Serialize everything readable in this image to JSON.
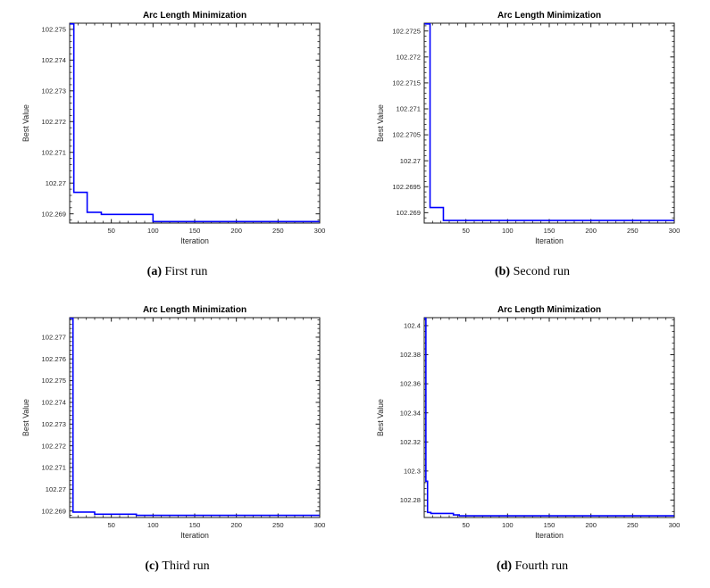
{
  "page": {
    "background": "#ffffff"
  },
  "chart_data": [
    {
      "type": "line",
      "title": "Arc Length Minimization",
      "xlabel": "Iteration",
      "ylabel": "Best Value",
      "caption": {
        "label": "(a)",
        "text": "First run"
      },
      "xlim": [
        0,
        300
      ],
      "ylim": [
        102.2687,
        102.2752
      ],
      "xticks": [
        50,
        100,
        150,
        200,
        250,
        300
      ],
      "xtick_minor": 10,
      "yticks": [
        102.269,
        102.27,
        102.271,
        102.272,
        102.273,
        102.274,
        102.275
      ],
      "ytick_labels": [
        "102.269",
        "102.27",
        "102.271",
        "102.272",
        "102.273",
        "102.274",
        "102.275"
      ],
      "ytick_minor": 0.0002,
      "grid": false,
      "legend": null,
      "line_color": "#0000ff",
      "series": [
        {
          "name": "best value",
          "points": [
            [
              0,
              102.276
            ],
            [
              5,
              102.276
            ],
            [
              5,
              102.2697
            ],
            [
              21,
              102.2697
            ],
            [
              21,
              102.26905
            ],
            [
              38,
              102.26905
            ],
            [
              38,
              102.26898
            ],
            [
              100,
              102.26898
            ],
            [
              100,
              102.26875
            ],
            [
              300,
              102.26875
            ]
          ]
        }
      ]
    },
    {
      "type": "line",
      "title": "Arc Length Minimization",
      "xlabel": "Iteration",
      "ylabel": "Best Value",
      "caption": {
        "label": "(b)",
        "text": "Second run"
      },
      "xlim": [
        0,
        300
      ],
      "ylim": [
        102.2688,
        102.27265
      ],
      "xticks": [
        50,
        100,
        150,
        200,
        250,
        300
      ],
      "xtick_minor": 10,
      "yticks": [
        102.269,
        102.2695,
        102.27,
        102.2705,
        102.271,
        102.2715,
        102.272,
        102.2725
      ],
      "ytick_labels": [
        "102.269",
        "102.2695",
        "102.27",
        "102.2705",
        "102.271",
        "102.2715",
        "102.272",
        "102.2725"
      ],
      "ytick_minor": 0.0001,
      "grid": false,
      "legend": null,
      "line_color": "#0000ff",
      "series": [
        {
          "name": "best value",
          "points": [
            [
              0,
              102.2735
            ],
            [
              7,
              102.2735
            ],
            [
              7,
              102.2691
            ],
            [
              23,
              102.2691
            ],
            [
              23,
              102.26885
            ],
            [
              300,
              102.26885
            ]
          ]
        }
      ]
    },
    {
      "type": "line",
      "title": "Arc Length Minimization",
      "xlabel": "Iteration",
      "ylabel": "Best Value",
      "caption": {
        "label": "(c)",
        "text": "Third run"
      },
      "xlim": [
        0,
        300
      ],
      "ylim": [
        102.2687,
        102.2779
      ],
      "xticks": [
        50,
        100,
        150,
        200,
        250,
        300
      ],
      "xtick_minor": 10,
      "yticks": [
        102.269,
        102.27,
        102.271,
        102.272,
        102.273,
        102.274,
        102.275,
        102.276,
        102.277
      ],
      "ytick_labels": [
        "102.269",
        "102.27",
        "102.271",
        "102.272",
        "102.273",
        "102.274",
        "102.275",
        "102.276",
        "102.277"
      ],
      "ytick_minor": 0.0002,
      "grid": false,
      "legend": null,
      "line_color": "#0000ff",
      "series": [
        {
          "name": "best value",
          "points": [
            [
              0,
              102.279
            ],
            [
              4,
              102.279
            ],
            [
              4,
              102.26895
            ],
            [
              30,
              102.26895
            ],
            [
              30,
              102.26885
            ],
            [
              80,
              102.26885
            ],
            [
              80,
              102.2688
            ],
            [
              300,
              102.2688
            ]
          ]
        }
      ]
    },
    {
      "type": "line",
      "title": "Arc Length Minimization",
      "xlabel": "Iteration",
      "ylabel": "Best Value",
      "caption": {
        "label": "(d)",
        "text": "Fourth run"
      },
      "xlim": [
        0,
        300
      ],
      "ylim": [
        102.268,
        102.4055
      ],
      "xticks": [
        50,
        100,
        150,
        200,
        250,
        300
      ],
      "xtick_minor": 10,
      "yticks": [
        102.28,
        102.3,
        102.32,
        102.34,
        102.36,
        102.38,
        102.4
      ],
      "ytick_labels": [
        "102.28",
        "102.3",
        "102.32",
        "102.34",
        "102.36",
        "102.38",
        "102.4"
      ],
      "ytick_minor": 0.004,
      "grid": false,
      "legend": null,
      "line_color": "#0000ff",
      "series": [
        {
          "name": "best value",
          "points": [
            [
              0,
              102.41
            ],
            [
              2,
              102.41
            ],
            [
              2,
              102.293
            ],
            [
              4,
              102.293
            ],
            [
              4,
              102.2715
            ],
            [
              8,
              102.2715
            ],
            [
              8,
              102.2708
            ],
            [
              35,
              102.2708
            ],
            [
              35,
              102.2698
            ],
            [
              42,
              102.2698
            ],
            [
              42,
              102.2692
            ],
            [
              300,
              102.2692
            ]
          ]
        }
      ]
    }
  ]
}
